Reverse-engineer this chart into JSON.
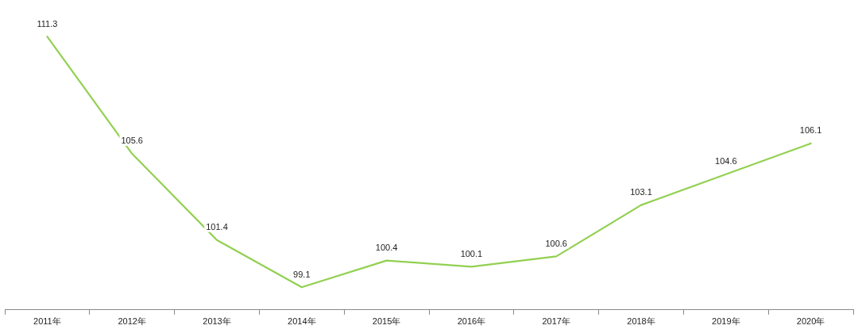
{
  "chart_data": {
    "type": "line",
    "categories": [
      "2011年",
      "2012年",
      "2013年",
      "2014年",
      "2015年",
      "2016年",
      "2017年",
      "2018年",
      "2019年",
      "2020年"
    ],
    "series": [
      {
        "color": "#92d050",
        "values": [
          111.3,
          105.6,
          101.4,
          99.1,
          100.4,
          100.1,
          100.6,
          103.1,
          104.6,
          106.1
        ]
      }
    ],
    "data_labels": true,
    "marker": "none",
    "line_style": "solid",
    "grid": false,
    "legend": false,
    "tick_labels": "x"
  }
}
